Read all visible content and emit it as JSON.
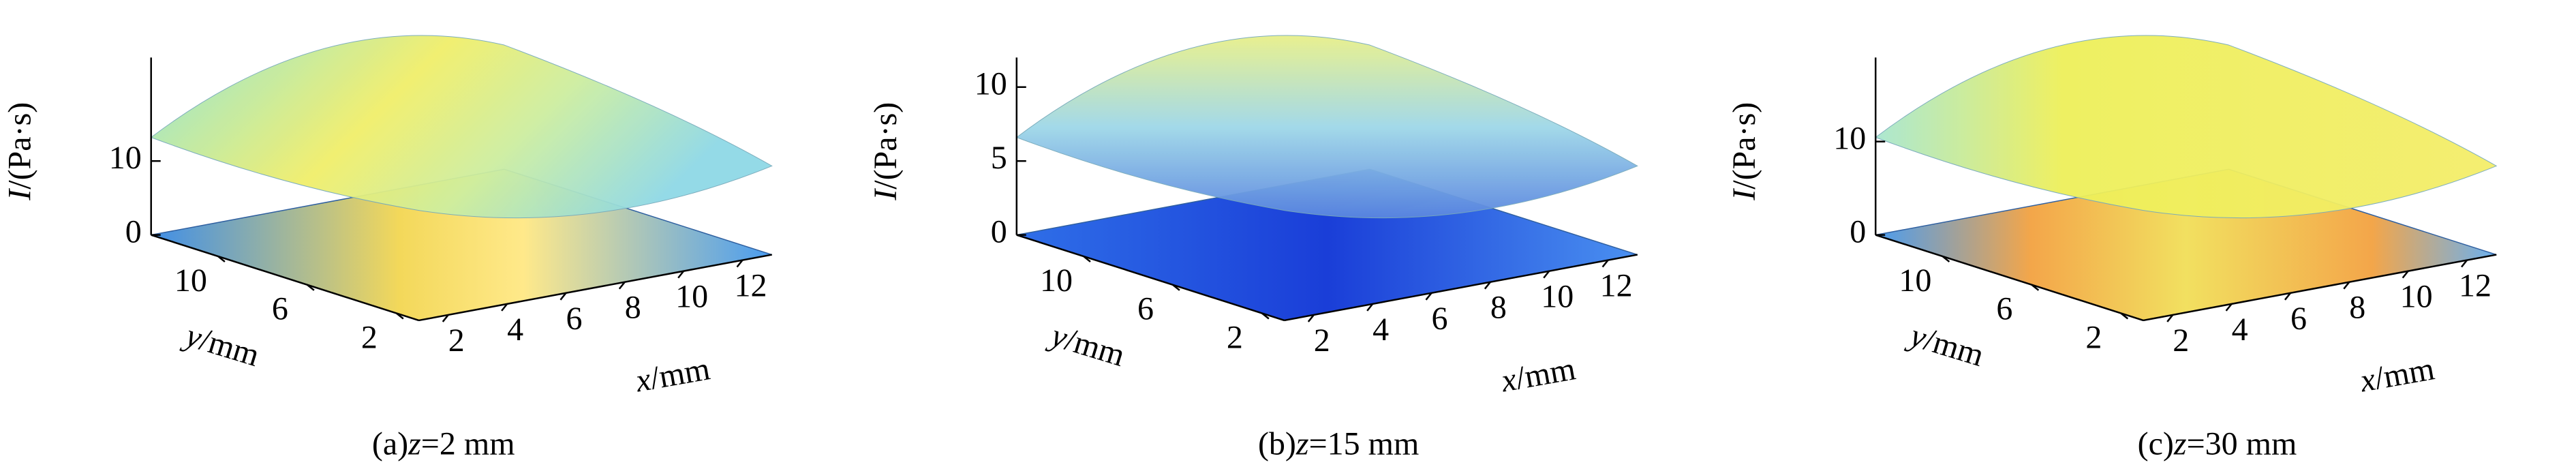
{
  "chart_data": [
    {
      "type": "surface3d",
      "caption_label": "(a)",
      "caption_var": "z",
      "caption_value": "=2 mm",
      "zlabel_var": "I",
      "zlabel_unit": "/(Pa·s)",
      "xlabel_var": "x",
      "xlabel_unit": "/mm",
      "ylabel_var": "y",
      "ylabel_unit": "/mm",
      "xlim": [
        1,
        13
      ],
      "xticks": [
        2,
        4,
        6,
        8,
        10,
        12
      ],
      "ylim": [
        1,
        13
      ],
      "yticks": [
        2,
        6,
        10
      ],
      "zlim": [
        0,
        24
      ],
      "zticks": [
        0,
        10
      ]
    },
    {
      "type": "surface3d",
      "caption_label": "(b)",
      "caption_var": "z",
      "caption_value": "=15 mm",
      "zlabel_var": "I",
      "zlabel_unit": "/(Pa·s)",
      "xlabel_var": "x",
      "xlabel_unit": "/mm",
      "ylabel_var": "y",
      "ylabel_unit": "/mm",
      "xlim": [
        1,
        13
      ],
      "xticks": [
        2,
        4,
        6,
        8,
        10,
        12
      ],
      "ylim": [
        1,
        13
      ],
      "yticks": [
        2,
        6,
        10
      ],
      "zlim": [
        0,
        12
      ],
      "zticks": [
        0,
        5,
        10
      ]
    },
    {
      "type": "surface3d",
      "caption_label": "(c)",
      "caption_var": "z",
      "caption_value": "=30 mm",
      "zlabel_var": "I",
      "zlabel_unit": "/(Pa·s)",
      "xlabel_var": "x",
      "xlabel_unit": "/mm",
      "ylabel_var": "y",
      "ylabel_unit": "/mm",
      "xlim": [
        1,
        13
      ],
      "xticks": [
        2,
        4,
        6,
        8,
        10,
        12
      ],
      "ylim": [
        1,
        13
      ],
      "yticks": [
        2,
        6,
        10
      ],
      "zlim": [
        0,
        19
      ],
      "zticks": [
        0,
        10
      ]
    }
  ]
}
